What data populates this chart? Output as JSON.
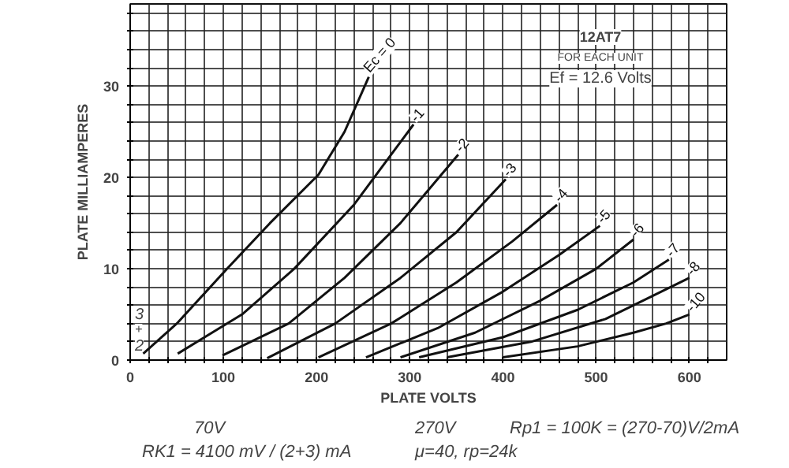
{
  "chart_data": {
    "type": "line",
    "title": "12AT7",
    "subtitle": "FOR EACH UNIT",
    "xlabel": "PLATE VOLTS",
    "ylabel": "PLATE MILLIAMPERES",
    "xlim": [
      0,
      640
    ],
    "ylim": [
      0,
      39
    ],
    "xticks": [
      0,
      {
        "value": 20,
        "label": null
      },
      {
        "value": 40,
        "label": null
      },
      {
        "value": 60,
        "label": null
      },
      {
        "value": 80,
        "label": null
      },
      100,
      {
        "value": 120,
        "label": null
      },
      {
        "value": 140,
        "label": null
      },
      {
        "value": 160,
        "label": null
      },
      {
        "value": 180,
        "label": null
      },
      200,
      {
        "value": 220,
        "label": null
      },
      {
        "value": 240,
        "label": null
      },
      {
        "value": 260,
        "label": null
      },
      {
        "value": 280,
        "label": null
      },
      300,
      {
        "value": 320,
        "label": null
      },
      {
        "value": 340,
        "label": null
      },
      {
        "value": 360,
        "label": null
      },
      {
        "value": 380,
        "label": null
      },
      400,
      {
        "value": 420,
        "label": null
      },
      {
        "value": 440,
        "label": null
      },
      {
        "value": 460,
        "label": null
      },
      {
        "value": 480,
        "label": null
      },
      500,
      {
        "value": 520,
        "label": null
      },
      {
        "value": 540,
        "label": null
      },
      {
        "value": 560,
        "label": null
      },
      {
        "value": 580,
        "label": null
      },
      600,
      {
        "value": 620,
        "label": null
      }
    ],
    "yticks": [
      0,
      {
        "value": 2,
        "label": null
      },
      {
        "value": 4,
        "label": null
      },
      {
        "value": 6,
        "label": null
      },
      {
        "value": 8,
        "label": null
      },
      10,
      {
        "value": 12,
        "label": null
      },
      {
        "value": 14,
        "label": null
      },
      {
        "value": 16,
        "label": null
      },
      {
        "value": 18,
        "label": null
      },
      20,
      {
        "value": 22,
        "label": null
      },
      {
        "value": 24,
        "label": null
      },
      {
        "value": 26,
        "label": null
      },
      {
        "value": 28,
        "label": null
      },
      30,
      {
        "value": 32,
        "label": null
      },
      {
        "value": 34,
        "label": null
      },
      {
        "value": 36,
        "label": null
      },
      {
        "value": 38,
        "label": null
      }
    ],
    "grid": true,
    "marker": "none",
    "line_style": "solid",
    "series": [
      {
        "name": "Ec = 0",
        "color": "#111111",
        "x": [
          14,
          50,
          104,
          150,
          202,
          230,
          256
        ],
        "values": [
          0.7,
          4,
          10,
          15,
          20.3,
          25,
          31
        ]
      },
      {
        "name": "-1",
        "color": "#111111",
        "x": [
          51,
          120,
          176,
          240,
          304
        ],
        "values": [
          0.7,
          5,
          10,
          17,
          25.8
        ]
      },
      {
        "name": "-2",
        "color": "#111111",
        "x": [
          99,
          170,
          230,
          290,
          352
        ],
        "values": [
          0.5,
          4,
          9,
          15,
          22.5
        ]
      },
      {
        "name": "-3",
        "color": "#111111",
        "x": [
          147,
          220,
          290,
          350,
          403
        ],
        "values": [
          0.2,
          4,
          9,
          14,
          19.8
        ]
      },
      {
        "name": "-4",
        "color": "#111111",
        "x": [
          202,
          280,
          350,
          410,
          458
        ],
        "values": [
          0.3,
          4,
          8.5,
          13,
          17
        ]
      },
      {
        "name": "-5",
        "color": "#111111",
        "x": [
          253,
          330,
          400,
          460,
          504
        ],
        "values": [
          0.3,
          3.5,
          7.5,
          11.5,
          14.7
        ]
      },
      {
        "name": "-6",
        "color": "#111111",
        "x": [
          290,
          370,
          440,
          500,
          540
        ],
        "values": [
          0.3,
          3,
          6.5,
          10,
          13.2
        ]
      },
      {
        "name": "-7",
        "color": "#111111",
        "x": [
          310,
          400,
          480,
          540,
          578
        ],
        "values": [
          0.3,
          2.5,
          5.5,
          8.5,
          11
        ]
      },
      {
        "name": "-8",
        "color": "#111111",
        "x": [
          340,
          430,
          510,
          560,
          600
        ],
        "values": [
          0.3,
          2,
          4.5,
          7,
          9
        ]
      },
      {
        "name": "-10",
        "color": "#111111",
        "x": [
          400,
          480,
          540,
          575,
          600
        ],
        "values": [
          0.3,
          1.5,
          3,
          4,
          5
        ]
      }
    ],
    "annotations": [
      "Ef = 12.6 Volts",
      "3",
      "+",
      "2",
      "70V",
      "270V",
      "RK1 = 4100 mV / (2+3) mA",
      "μ=40, rp=24k",
      "Rp1 = 100K = (270-70)V/2mA"
    ]
  }
}
